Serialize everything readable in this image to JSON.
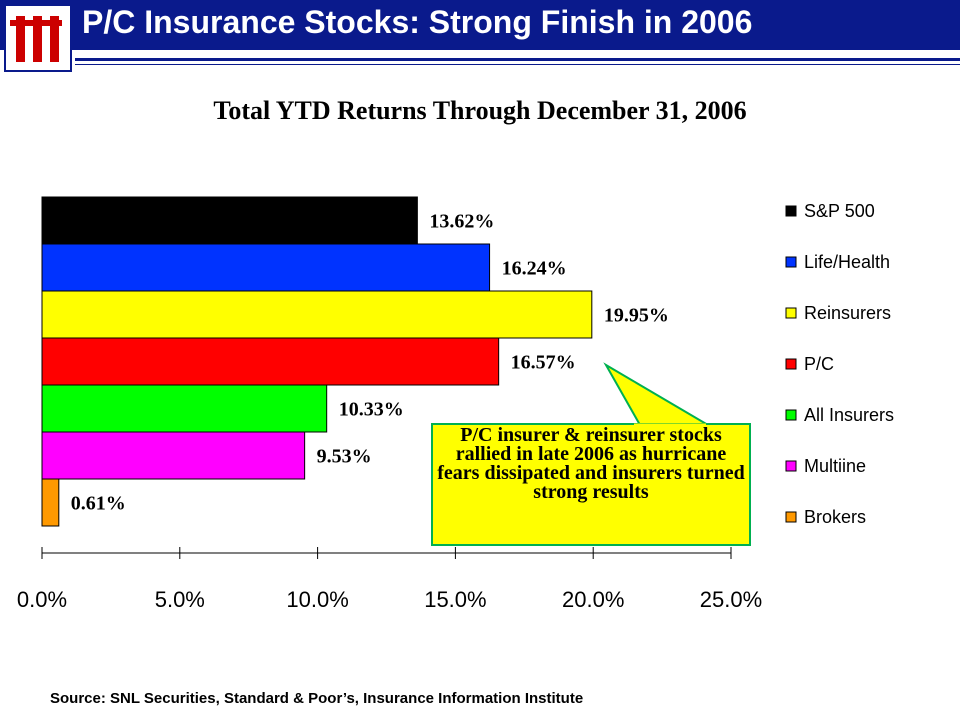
{
  "slide": {
    "title": "P/C Insurance Stocks: Strong Finish in 2006",
    "logo_text": "III"
  },
  "chart_data": {
    "type": "bar",
    "orientation": "horizontal",
    "title": "Total YTD Returns Through December 31, 2006",
    "categories": [
      "S&P 500",
      "Life/Health",
      "Reinsurers",
      "P/C",
      "All Insurers",
      "Multiine",
      "Brokers"
    ],
    "values": [
      13.62,
      16.24,
      19.95,
      16.57,
      10.33,
      9.53,
      0.61
    ],
    "data_labels": [
      "13.62%",
      "16.24%",
      "19.95%",
      "16.57%",
      "10.33%",
      "9.53%",
      "0.61%"
    ],
    "colors": [
      "#000000",
      "#0033ff",
      "#ffff00",
      "#ff0000",
      "#00ff00",
      "#ff00ff",
      "#ff9900"
    ],
    "xlim": [
      0,
      25
    ],
    "x_ticks": [
      "0.0%",
      "5.0%",
      "10.0%",
      "15.0%",
      "20.0%",
      "25.0%"
    ],
    "legend_position": "right",
    "grid": false
  },
  "callout": {
    "text": "P/C insurer & reinsurer stocks rallied in late 2006 as hurricane fears dissipated and insurers turned strong results"
  },
  "source": "Source: SNL Securities, Standard & Poor’s, Insurance Information Institute"
}
